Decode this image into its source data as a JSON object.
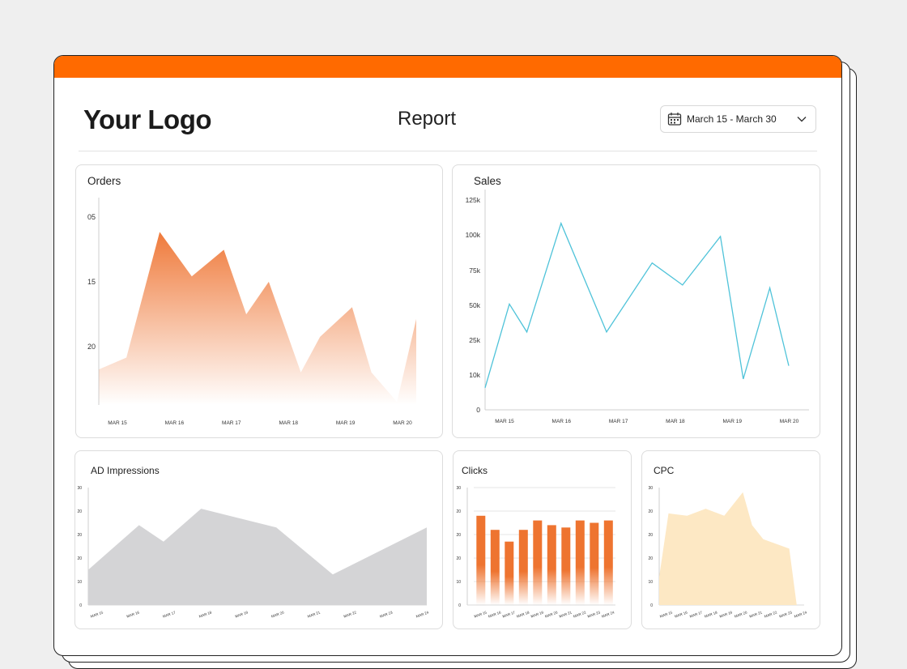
{
  "header": {
    "logo": "Your Logo",
    "title": "Report",
    "date_range": "March 15 - March 30"
  },
  "colors": {
    "accent": "#ff6a00",
    "orders_fill": "#ef7a3b",
    "sales_line": "#4fc3d9",
    "impressions_fill": "#d4d4d6",
    "clicks_bar": "#ee7430",
    "cpc_fill": "#fde8c4"
  },
  "cards": {
    "orders": {
      "title": "Orders"
    },
    "sales": {
      "title": "Sales"
    },
    "impressions": {
      "title": "AD Impressions"
    },
    "clicks": {
      "title": "Clicks"
    },
    "cpc": {
      "title": "CPC"
    }
  },
  "chart_data": [
    {
      "id": "orders",
      "type": "area",
      "title": "Orders",
      "y_ticks": [
        "05",
        "15",
        "20"
      ],
      "x_ticks": [
        "MAR 15",
        "MAR 16",
        "MAR 17",
        "MAR 18",
        "MAR 19",
        "MAR 20"
      ],
      "x": [
        0,
        0.43,
        0.95,
        1.45,
        1.95,
        2.3,
        2.65,
        3.15,
        3.45,
        3.95,
        4.25,
        4.65,
        4.95
      ],
      "values": [
        1,
        3,
        24.2,
        16.7,
        21.2,
        10.3,
        15.8,
        0.5,
        6.5,
        11.5,
        0.5,
        -4.5,
        9.5
      ],
      "ylim": [
        -5,
        30
      ],
      "grid": false
    },
    {
      "id": "sales",
      "type": "line",
      "title": "Sales",
      "y_ticks": [
        "0",
        "10k",
        "25k",
        "50k",
        "75k",
        "100k",
        "125k"
      ],
      "x_ticks": [
        "MAR 15",
        "MAR 16",
        "MAR 17",
        "MAR 18",
        "MAR 19",
        "MAR 20"
      ],
      "x": [
        0,
        0.32,
        0.55,
        1.0,
        1.6,
        2.2,
        2.6,
        3.1,
        3.4,
        3.75,
        4.0
      ],
      "values": [
        15,
        72,
        53,
        127,
        53,
        100,
        85,
        118,
        21,
        83,
        30
      ],
      "ylim": [
        0,
        150
      ],
      "grid": false
    },
    {
      "id": "impressions",
      "type": "area",
      "title": "AD Impressions",
      "y_ticks": [
        "0",
        "10",
        "20",
        "20",
        "20",
        "30"
      ],
      "x_ticks": [
        "MAR 15",
        "MAR 16",
        "MAR 17",
        "MAR 18",
        "MAR 19",
        "MAR 20",
        "MAR 21",
        "MAR 22",
        "MAR 23",
        "MAR 24"
      ],
      "x": [
        0,
        1.35,
        2.0,
        3.0,
        5.0,
        6.5,
        9.0
      ],
      "values": [
        1.5,
        3.4,
        2.7,
        4.1,
        3.3,
        1.3,
        3.3
      ],
      "ylim": [
        0,
        5
      ],
      "grid": false
    },
    {
      "id": "clicks",
      "type": "bar",
      "title": "Clicks",
      "y_ticks": [
        "0",
        "10",
        "20",
        "20",
        "20",
        "30"
      ],
      "categories": [
        "MAR 15",
        "MAR 16",
        "MAR 17",
        "MAR 18",
        "MAR 19",
        "MAR 20",
        "MAR 21",
        "MAR 22",
        "MAR 23",
        "MAR 24"
      ],
      "values": [
        3.8,
        3.2,
        2.7,
        3.2,
        3.6,
        3.4,
        3.3,
        3.6,
        3.5,
        3.6
      ],
      "ylim": [
        0,
        5
      ],
      "grid": true
    },
    {
      "id": "cpc",
      "type": "area",
      "title": "CPC",
      "y_ticks": [
        "0",
        "10",
        "20",
        "20",
        "20",
        "30"
      ],
      "x_ticks": [
        "MAR 15",
        "MAR 16",
        "MAR 17",
        "MAR 18",
        "MAR 19",
        "MAR 20",
        "MAR 21",
        "MAR 22",
        "MAR 23",
        "MAR 24"
      ],
      "x": [
        0,
        0.5,
        1.5,
        2.5,
        3.5,
        4.5,
        5.0,
        5.6,
        7.0,
        7.4
      ],
      "values": [
        1.2,
        3.9,
        3.8,
        4.1,
        3.8,
        4.8,
        3.4,
        2.8,
        2.4,
        0
      ],
      "ylim": [
        0,
        5
      ],
      "grid": false
    }
  ]
}
